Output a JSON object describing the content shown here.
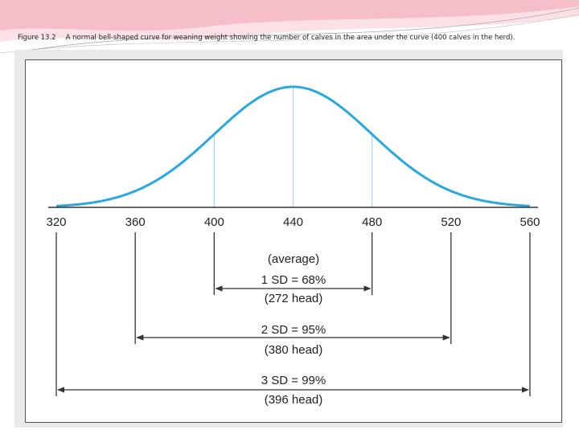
{
  "caption": {
    "label": "Figure 13.2",
    "text": "A normal bell-shaped curve for weaning weight showing the number of calves in the area under the curve (400 calves in the herd)."
  },
  "colors": {
    "curve": "#29a8df",
    "guide": "#9fd7ee",
    "axis": "#333333",
    "header_pink": "#f2a6b6"
  },
  "chart_data": {
    "type": "line",
    "mean": 440,
    "sd": 40,
    "xlim": [
      320,
      560
    ],
    "x_ticks": [
      "320",
      "360",
      "400",
      "440",
      "480",
      "520",
      "560"
    ],
    "annotations": {
      "average": "(average)",
      "sd1": "1 SD = 68%",
      "sd1_count": "(272 head)",
      "sd2": "2 SD = 95%",
      "sd2_count": "(380 head)",
      "sd3": "3 SD = 99%",
      "sd3_count": "(396 head)"
    },
    "ranges": [
      {
        "sd": 1,
        "from": 400,
        "to": 480
      },
      {
        "sd": 2,
        "from": 360,
        "to": 520
      },
      {
        "sd": 3,
        "from": 320,
        "to": 560
      }
    ]
  }
}
